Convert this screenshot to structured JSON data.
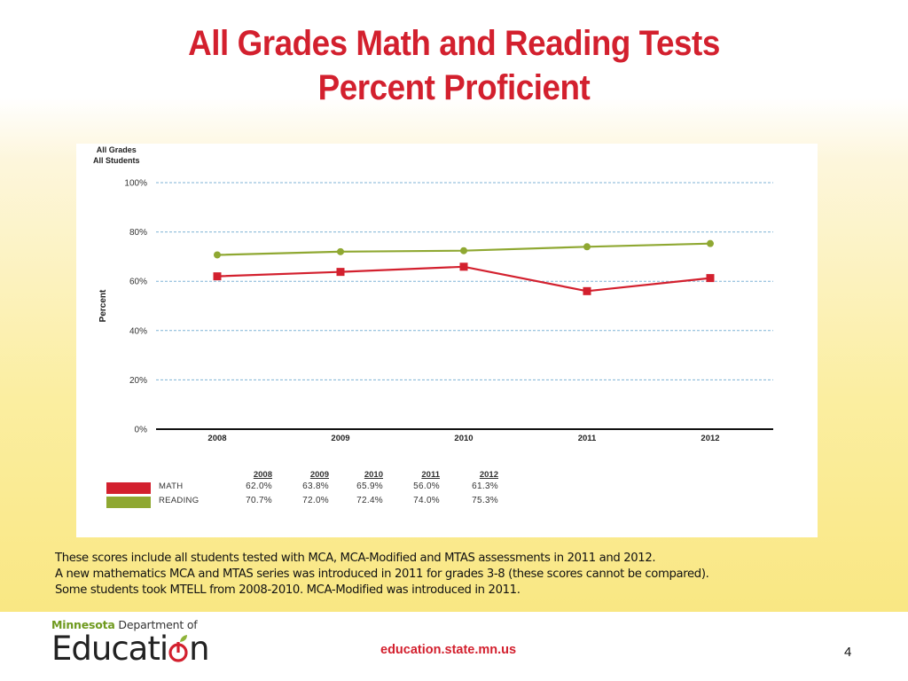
{
  "slide": {
    "title_line1": "All Grades Math and Reading Tests",
    "title_line2": "Percent Proficient",
    "footnote_lines": [
      "These scores include all students tested with MCA, MCA-Modified and MTAS assessments in 2011 and 2012.",
      "A new mathematics MCA and MTAS series was introduced in 2011 for grades 3-8 (these scores cannot be compared).",
      "Some students took MTELL from 2008-2010.  MCA-Modified was introduced in 2011."
    ],
    "logo": {
      "top_prefix": "Minnesota",
      "top_suffix": " Department of",
      "main_before": "Educati",
      "main_after": "n"
    },
    "url": "education.state.mn.us",
    "page_number": "4"
  },
  "chart_header": {
    "line1": "All Grades",
    "line2": "All Students"
  },
  "colors": {
    "math": "#d3202e",
    "reading": "#8fa832",
    "title": "#d3202e",
    "gridline": "#7fb3d5"
  },
  "chart_data": {
    "type": "line",
    "title": "All Grades Math and Reading Tests Percent Proficient",
    "subtitle": "All Grades / All Students",
    "xlabel": "",
    "ylabel": "Percent",
    "categories": [
      "2008",
      "2009",
      "2010",
      "2011",
      "2012"
    ],
    "y_ticks": [
      "0%",
      "20%",
      "40%",
      "60%",
      "80%",
      "100%"
    ],
    "ylim": [
      0,
      100
    ],
    "grid": true,
    "legend_position": "bottom (data table)",
    "series": [
      {
        "name": "MATH",
        "marker": "square",
        "color": "#d3202e",
        "values": [
          62.0,
          63.8,
          65.9,
          56.0,
          61.3
        ],
        "labels": [
          "62.0%",
          "63.8%",
          "65.9%",
          "56.0%",
          "61.3%"
        ]
      },
      {
        "name": "READING",
        "marker": "circle",
        "color": "#8fa832",
        "values": [
          70.7,
          72.0,
          72.4,
          74.0,
          75.3
        ],
        "labels": [
          "70.7%",
          "72.0%",
          "72.4%",
          "74.0%",
          "75.3%"
        ]
      }
    ]
  }
}
